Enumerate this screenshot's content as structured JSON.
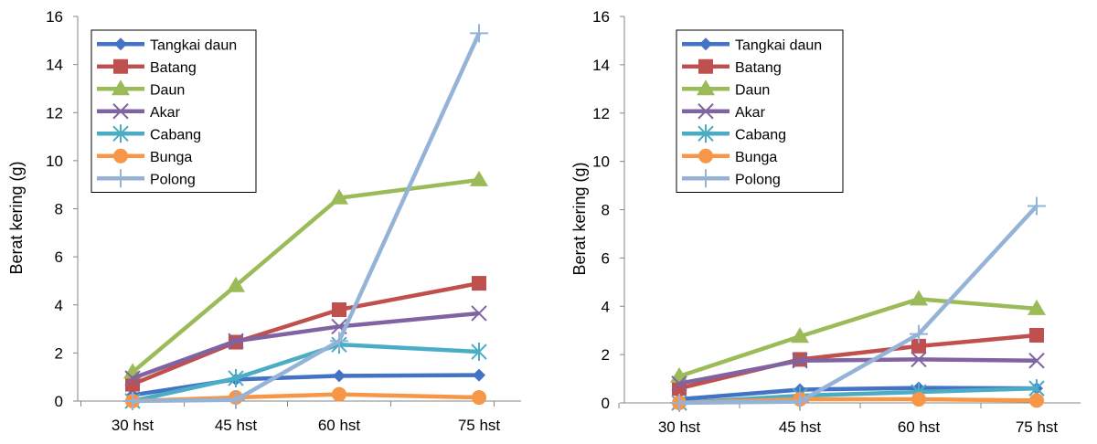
{
  "chart_data": [
    {
      "type": "line",
      "title": "",
      "xlabel": "",
      "ylabel": "Berat kering (g)",
      "ylim": [
        0,
        16
      ],
      "yticks": [
        0,
        2,
        4,
        6,
        8,
        10,
        12,
        14,
        16
      ],
      "categories": [
        "30 hst",
        "45 hst",
        "60 hst",
        "75 hst"
      ],
      "grid": false,
      "legend_position": "top-left",
      "series": [
        {
          "name": "Tangkai daun",
          "color": "#4472C4",
          "marker": "diamond",
          "values": [
            0.25,
            0.9,
            1.05,
            1.08
          ]
        },
        {
          "name": "Batang",
          "color": "#C0504D",
          "marker": "square",
          "values": [
            0.7,
            2.45,
            3.8,
            4.9
          ]
        },
        {
          "name": "Daun",
          "color": "#9BBB59",
          "marker": "triangle",
          "values": [
            1.2,
            4.8,
            8.45,
            9.2
          ]
        },
        {
          "name": "Akar",
          "color": "#8064A2",
          "marker": "x",
          "values": [
            0.95,
            2.5,
            3.1,
            3.65
          ]
        },
        {
          "name": "Cabang",
          "color": "#4BACC6",
          "marker": "star",
          "values": [
            0.0,
            0.95,
            2.35,
            2.05
          ]
        },
        {
          "name": "Bunga",
          "color": "#F79646",
          "marker": "circle",
          "values": [
            0.0,
            0.15,
            0.28,
            0.15
          ]
        },
        {
          "name": "Polong",
          "color": "#95B3D7",
          "marker": "plus",
          "values": [
            0.0,
            0.05,
            2.5,
            15.3
          ]
        }
      ]
    },
    {
      "type": "line",
      "title": "",
      "xlabel": "",
      "ylabel": "Berat kering (g)",
      "ylim": [
        0,
        16
      ],
      "yticks": [
        0,
        2,
        4,
        6,
        8,
        10,
        12,
        14,
        16
      ],
      "categories": [
        "30 hst",
        "45 hst",
        "60 hst",
        "75 hst"
      ],
      "grid": false,
      "legend_position": "top-left",
      "series": [
        {
          "name": "Tangkai daun",
          "color": "#4472C4",
          "marker": "diamond",
          "values": [
            0.15,
            0.55,
            0.62,
            0.6
          ]
        },
        {
          "name": "Batang",
          "color": "#C0504D",
          "marker": "square",
          "values": [
            0.6,
            1.8,
            2.35,
            2.8
          ]
        },
        {
          "name": "Daun",
          "color": "#9BBB59",
          "marker": "triangle",
          "values": [
            1.1,
            2.75,
            4.3,
            3.9
          ]
        },
        {
          "name": "Akar",
          "color": "#8064A2",
          "marker": "x",
          "values": [
            0.8,
            1.75,
            1.8,
            1.75
          ]
        },
        {
          "name": "Cabang",
          "color": "#4BACC6",
          "marker": "star",
          "values": [
            0.0,
            0.3,
            0.45,
            0.6
          ]
        },
        {
          "name": "Bunga",
          "color": "#F79646",
          "marker": "circle",
          "values": [
            0.0,
            0.15,
            0.15,
            0.1
          ]
        },
        {
          "name": "Polong",
          "color": "#95B3D7",
          "marker": "plus",
          "values": [
            0.0,
            0.05,
            2.85,
            8.15
          ]
        }
      ]
    }
  ]
}
